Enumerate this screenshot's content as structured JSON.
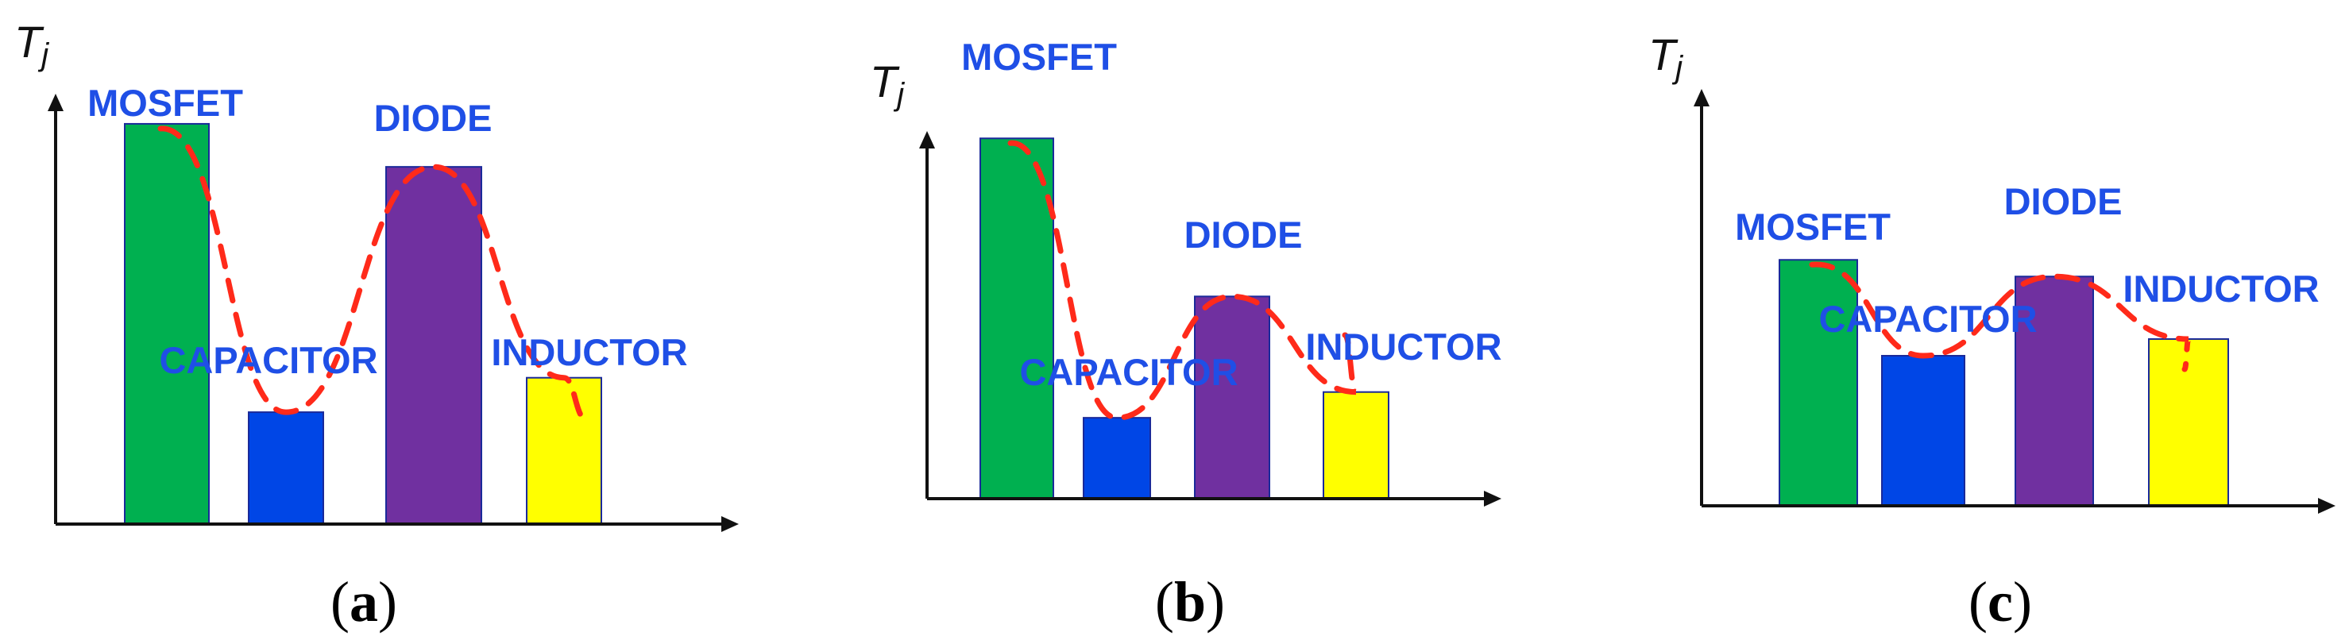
{
  "chart_data": [
    {
      "type": "bar",
      "panel": "(a)",
      "ylabel": "Tj",
      "categories": [
        "MOSFET",
        "CAPACITOR",
        "DIODE",
        "INDUCTOR"
      ],
      "values": [
        9.3,
        2.6,
        8.3,
        3.4
      ],
      "ylim": [
        0,
        10
      ],
      "trend": "red-dashed-curve",
      "colors": [
        "#00b050",
        "#0046e6",
        "#7030a0",
        "#ffff00"
      ]
    },
    {
      "type": "bar",
      "panel": "(b)",
      "ylabel": "Tj",
      "categories": [
        "MOSFET",
        "CAPACITOR",
        "DIODE",
        "INDUCTOR"
      ],
      "values": [
        9.8,
        2.2,
        5.5,
        2.9
      ],
      "ylim": [
        0,
        10
      ],
      "trend": "red-dashed-curve",
      "colors": [
        "#00b050",
        "#0046e6",
        "#7030a0",
        "#ffff00"
      ]
    },
    {
      "type": "bar",
      "panel": "(c)",
      "ylabel": "Tj",
      "categories": [
        "MOSFET",
        "CAPACITOR",
        "DIODE",
        "INDUCTOR"
      ],
      "values": [
        5.9,
        3.6,
        5.5,
        4.0
      ],
      "ylim": [
        0,
        10
      ],
      "trend": "red-dashed-curve",
      "colors": [
        "#00b050",
        "#0046e6",
        "#7030a0",
        "#ffff00"
      ]
    }
  ],
  "colors": {
    "axis": "#111111",
    "trend_line": "#ff2a1a",
    "label": "#1f4fe6",
    "bar_border": "#1a2a9a"
  }
}
